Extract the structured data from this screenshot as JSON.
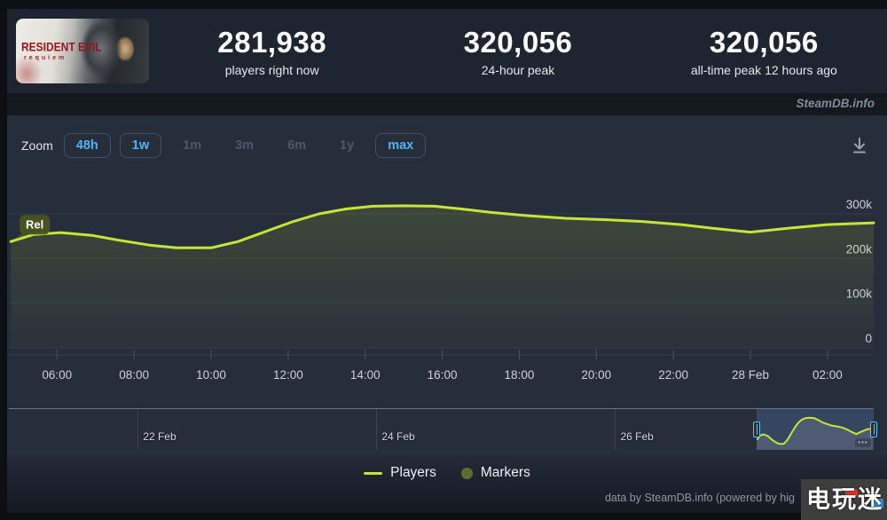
{
  "header": {
    "game": {
      "title_line1": "RESIDENT EVIL",
      "title_line2": "requiem"
    },
    "stats": [
      {
        "value": "281,938",
        "label": "players right now"
      },
      {
        "value": "320,056",
        "label": "24-hour peak"
      },
      {
        "value": "320,056",
        "label": "all-time peak 12 hours ago"
      }
    ]
  },
  "brandbar": {
    "text": "SteamDB.info"
  },
  "toolbar": {
    "zoom_label": "Zoom",
    "buttons": [
      {
        "label": "48h",
        "state": "active"
      },
      {
        "label": "1w",
        "state": "active"
      },
      {
        "label": "1m",
        "state": "disabled"
      },
      {
        "label": "3m",
        "state": "disabled"
      },
      {
        "label": "6m",
        "state": "disabled"
      },
      {
        "label": "1y",
        "state": "disabled"
      },
      {
        "label": "max",
        "state": "active"
      }
    ]
  },
  "chart_data": {
    "type": "line",
    "title": "",
    "ylabel": "Players",
    "x_unit": "hours since 27 Feb 00:00",
    "xlim": [
      4.75,
      27.2
    ],
    "ylim": [
      0,
      380000
    ],
    "series": [
      {
        "name": "Players",
        "color": "#c4e637",
        "points": [
          [
            4.8,
            238000
          ],
          [
            5.4,
            254000
          ],
          [
            6.1,
            258000
          ],
          [
            6.9,
            252000
          ],
          [
            7.6,
            241000
          ],
          [
            8.4,
            230000
          ],
          [
            9.1,
            224000
          ],
          [
            10.0,
            224000
          ],
          [
            10.7,
            238000
          ],
          [
            11.4,
            260000
          ],
          [
            12.1,
            282000
          ],
          [
            12.8,
            300000
          ],
          [
            13.5,
            311000
          ],
          [
            14.2,
            317000
          ],
          [
            15.0,
            318000
          ],
          [
            15.8,
            317000
          ],
          [
            16.5,
            311000
          ],
          [
            17.3,
            303000
          ],
          [
            18.2,
            296000
          ],
          [
            19.2,
            290000
          ],
          [
            20.2,
            287000
          ],
          [
            21.2,
            283000
          ],
          [
            22.2,
            276000
          ],
          [
            23.1,
            267000
          ],
          [
            24.0,
            259000
          ],
          [
            25.0,
            268000
          ],
          [
            26.0,
            276000
          ],
          [
            27.2,
            280000
          ]
        ]
      }
    ],
    "x_ticks": [
      {
        "h": 6,
        "label": "06:00"
      },
      {
        "h": 8,
        "label": "08:00"
      },
      {
        "h": 10,
        "label": "10:00"
      },
      {
        "h": 12,
        "label": "12:00"
      },
      {
        "h": 14,
        "label": "14:00"
      },
      {
        "h": 16,
        "label": "16:00"
      },
      {
        "h": 18,
        "label": "18:00"
      },
      {
        "h": 20,
        "label": "20:00"
      },
      {
        "h": 22,
        "label": "22:00"
      },
      {
        "h": 24,
        "label": "28 Feb"
      },
      {
        "h": 26,
        "label": "02:00"
      }
    ],
    "y_ticks": [
      {
        "v": 0,
        "label": "0"
      },
      {
        "v": 100000,
        "label": "100k"
      },
      {
        "v": 200000,
        "label": "200k"
      },
      {
        "v": 300000,
        "label": "300k"
      }
    ],
    "annotation": {
      "label": "Rel",
      "h": 4.8,
      "v": 238000
    },
    "legend": [
      {
        "label": "Players",
        "swatch": "line",
        "color": "#c4e637"
      },
      {
        "label": "Markers",
        "swatch": "circle",
        "color": "#5d6c33"
      }
    ],
    "navigator": {
      "range_labels": [
        {
          "label": "22 Feb",
          "pos": 14.9
        },
        {
          "label": "24 Feb",
          "pos": 42.5
        },
        {
          "label": "26 Feb",
          "pos": 70.1
        }
      ],
      "selection": {
        "start_pct": 86.5,
        "width_pct": 13.5
      },
      "menu_glyph": "•••"
    }
  },
  "footer": {
    "credit": "data by SteamDB.info (powered by hig"
  },
  "watermark": {
    "chars": [
      "电",
      "玩",
      "迷"
    ]
  }
}
